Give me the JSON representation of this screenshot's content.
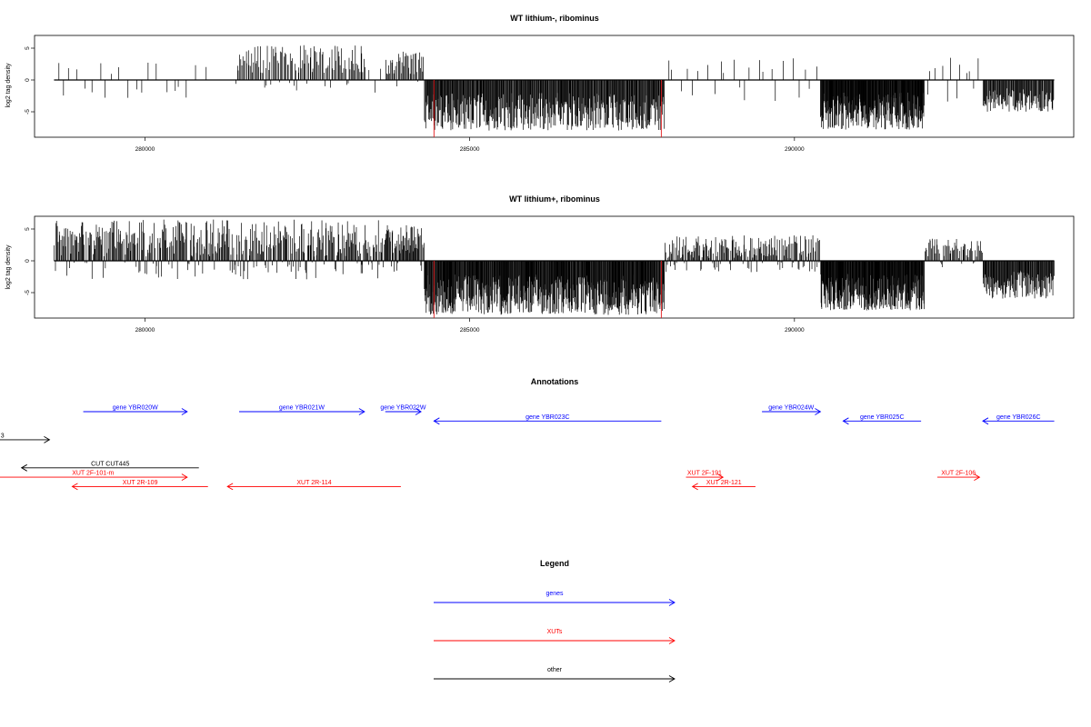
{
  "chart_data": [
    {
      "type": "bar",
      "title": "WT lithium-, ribominus",
      "ylabel": "log2 tag density",
      "xlabel": "",
      "xlim": [
        278300,
        294300
      ],
      "ylim": [
        -9,
        7
      ],
      "x_ticks": [
        280000,
        285000,
        290000
      ],
      "x_tick_labels": [
        "280000",
        "285000",
        "290000"
      ],
      "y_ticks": [
        -5,
        0,
        5
      ],
      "y_tick_labels": [
        "-5",
        "0",
        "5"
      ],
      "highlight_x": [
        284450,
        287950
      ],
      "highlight_values": [
        -9,
        -9
      ],
      "highlight_color": "#e31a1c",
      "bar_color": "#000000",
      "segments": [
        {
          "x0": 278600,
          "x1": 279900,
          "n": 12,
          "mode": "sparse_mixed",
          "amp": 3
        },
        {
          "x0": 279900,
          "x1": 281000,
          "n": 9,
          "mode": "sparse_mixed",
          "amp": 3.5
        },
        {
          "x0": 281400,
          "x1": 283400,
          "n": 120,
          "mode": "pos",
          "amp": 5.5
        },
        {
          "x0": 283400,
          "x1": 283700,
          "n": 3,
          "mode": "sparse_mixed",
          "amp": 2.5
        },
        {
          "x0": 283700,
          "x1": 284300,
          "n": 40,
          "mode": "pos",
          "amp": 4.5
        },
        {
          "x0": 284300,
          "x1": 288000,
          "n": 420,
          "mode": "neg",
          "amp": 8
        },
        {
          "x0": 288000,
          "x1": 290400,
          "n": 24,
          "mode": "sparse_mixed",
          "amp": 3.5
        },
        {
          "x0": 290400,
          "x1": 292000,
          "n": 260,
          "mode": "neg",
          "amp": 7.8
        },
        {
          "x0": 292000,
          "x1": 292900,
          "n": 12,
          "mode": "sparse_mixed",
          "amp": 3.5
        },
        {
          "x0": 292900,
          "x1": 294000,
          "n": 110,
          "mode": "neg",
          "amp": 5
        }
      ]
    },
    {
      "type": "bar",
      "title": "WT lithium+, ribominus",
      "ylabel": "log2 tag density",
      "xlabel": "",
      "xlim": [
        278300,
        294300
      ],
      "ylim": [
        -9,
        7
      ],
      "x_ticks": [
        280000,
        285000,
        290000
      ],
      "x_tick_labels": [
        "280000",
        "285000",
        "290000"
      ],
      "y_ticks": [
        -5,
        0,
        5
      ],
      "y_tick_labels": [
        "-5",
        "0",
        "5"
      ],
      "highlight_x": [
        284450,
        287950
      ],
      "highlight_values": [
        -9,
        -9
      ],
      "highlight_color": "#e31a1c",
      "bar_color": "#000000",
      "segments": [
        {
          "x0": 278600,
          "x1": 283700,
          "n": 420,
          "mode": "pos_dense",
          "amp": 6.5
        },
        {
          "x0": 283700,
          "x1": 284300,
          "n": 60,
          "mode": "pos",
          "amp": 5.8
        },
        {
          "x0": 284300,
          "x1": 288000,
          "n": 520,
          "mode": "neg",
          "amp": 8.5
        },
        {
          "x0": 288000,
          "x1": 290400,
          "n": 200,
          "mode": "pos_dense",
          "amp": 4
        },
        {
          "x0": 290400,
          "x1": 292000,
          "n": 260,
          "mode": "neg",
          "amp": 7.8
        },
        {
          "x0": 292000,
          "x1": 292900,
          "n": 60,
          "mode": "pos_dense",
          "amp": 3.5
        },
        {
          "x0": 292900,
          "x1": 294000,
          "n": 130,
          "mode": "neg",
          "amp": 6
        }
      ]
    }
  ],
  "annotations": {
    "title": "Annotations",
    "features": [
      {
        "label": "gene YBR020W",
        "type": "genes",
        "direction": "right",
        "x0": 279050,
        "x1": 280650,
        "row": 0
      },
      {
        "label": "gene YBR021W",
        "type": "genes",
        "direction": "right",
        "x0": 281450,
        "x1": 283380,
        "row": 0
      },
      {
        "label": "gene YBR022W",
        "type": "genes",
        "direction": "right",
        "x0": 283700,
        "x1": 284250,
        "row": 0
      },
      {
        "label": "gene YBR023C",
        "type": "genes",
        "direction": "left",
        "x0": 284450,
        "x1": 287950,
        "row": 1
      },
      {
        "label": "gene YBR024W",
        "type": "genes",
        "direction": "right",
        "x0": 289500,
        "x1": 290400,
        "row": 0
      },
      {
        "label": "gene YBR025C",
        "type": "genes",
        "direction": "left",
        "x0": 290750,
        "x1": 291950,
        "row": 1
      },
      {
        "label": "gene YBR026C",
        "type": "genes",
        "direction": "left",
        "x0": 292900,
        "x1": 294000,
        "row": 1
      },
      {
        "label": "3",
        "type": "other",
        "direction": "right",
        "x0": 277750,
        "x1": 278530,
        "row": 3
      },
      {
        "label": "CUT CUT445",
        "type": "other",
        "direction": "left",
        "x0": 278100,
        "x1": 280830,
        "row": 6
      },
      {
        "label": "XUT 2F-101-m",
        "type": "XUTs",
        "direction": "right",
        "x0": 277750,
        "x1": 280650,
        "row": 7
      },
      {
        "label": "XUT 2R-109",
        "type": "XUTs",
        "direction": "left",
        "x0": 278880,
        "x1": 280970,
        "row": 8
      },
      {
        "label": "XUT 2R-114",
        "type": "XUTs",
        "direction": "left",
        "x0": 281270,
        "x1": 283940,
        "row": 8
      },
      {
        "label": "XUT 2F-191",
        "type": "XUTs",
        "direction": "right",
        "x0": 288330,
        "x1": 288900,
        "row": 7
      },
      {
        "label": "XUT 2R-121",
        "type": "XUTs",
        "direction": "left",
        "x0": 288430,
        "x1": 289400,
        "row": 8
      },
      {
        "label": "XUT 2F-106",
        "type": "XUTs",
        "direction": "right",
        "x0": 292200,
        "x1": 292850,
        "row": 7
      }
    ]
  },
  "legend": {
    "title": "Legend",
    "items": [
      {
        "label": "genes",
        "color": "#0000ff"
      },
      {
        "label": "XUTs",
        "color": "#ff0000"
      },
      {
        "label": "other",
        "color": "#000000"
      }
    ]
  },
  "colors": {
    "genes": "#0000ff",
    "XUTs": "#ff0000",
    "other": "#000000"
  }
}
